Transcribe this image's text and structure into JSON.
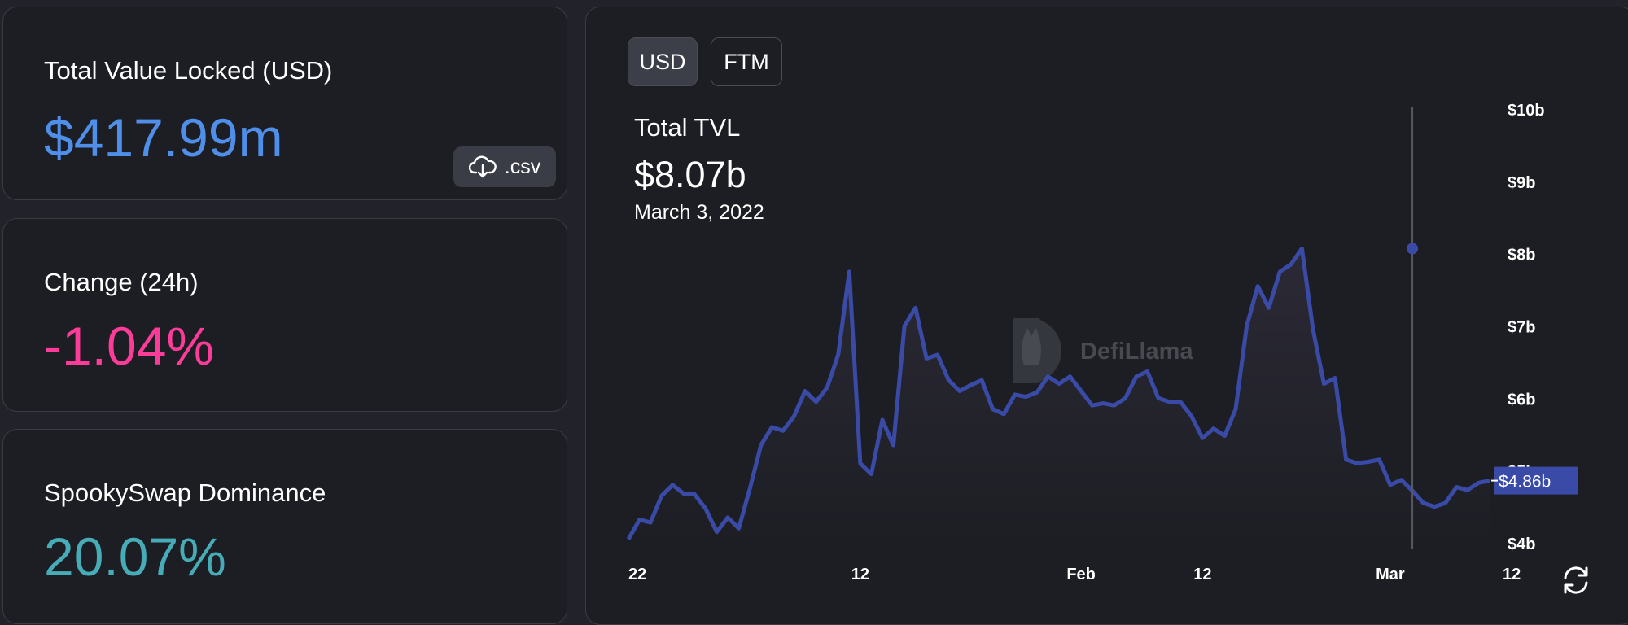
{
  "stats": {
    "tvl": {
      "label": "Total Value Locked (USD)",
      "value": "$417.99m",
      "color": "#4f8fea"
    },
    "change": {
      "label": "Change (24h)",
      "value": "-1.04%",
      "color": "#fd3c99"
    },
    "dominance": {
      "label": "SpookySwap Dominance",
      "value": "20.07%",
      "color": "#46acb7"
    }
  },
  "csv_button": {
    "label": ".csv",
    "icon": "cloud-download-icon"
  },
  "toggles": {
    "usd": "USD",
    "ftm": "FTM",
    "selected": "USD"
  },
  "tooltip": {
    "title": "Total TVL",
    "value": "$8.07b",
    "date": "March 3, 2022"
  },
  "watermark": {
    "text": "DefiLlama"
  },
  "refresh_icon": "refresh-icon",
  "chart_data": {
    "type": "area",
    "title": "",
    "xlabel": "",
    "ylabel": "",
    "ylim": [
      4,
      10
    ],
    "y_ticks": [
      "$4b",
      "$5b",
      "$6b",
      "$7b",
      "$8b",
      "$9b",
      "$10b"
    ],
    "x_ticks": [
      "22",
      "12",
      "Feb",
      "12",
      "Mar",
      "12"
    ],
    "line_color": "#3a4ba7",
    "x_start": "2021-12-22",
    "series": [
      {
        "values": [
          4.05,
          4.32,
          4.28,
          4.65,
          4.8,
          4.68,
          4.67,
          4.47,
          4.15,
          4.35,
          4.2,
          4.75,
          5.35,
          5.6,
          5.55,
          5.75,
          6.1,
          5.95,
          6.15,
          6.6,
          7.75,
          5.1,
          4.95,
          5.7,
          5.35,
          7.0,
          7.25,
          6.55,
          6.6,
          6.25,
          6.1,
          6.18,
          6.25,
          5.85,
          5.78,
          6.05,
          6.02,
          6.08,
          6.3,
          6.2,
          6.3,
          6.1,
          5.9,
          5.93,
          5.9,
          6.0,
          6.3,
          6.37,
          6.0,
          5.95,
          5.95,
          5.75,
          5.45,
          5.58,
          5.48,
          5.85,
          7.0,
          7.55,
          7.25,
          7.75,
          7.85,
          8.07,
          6.95,
          6.2,
          6.28,
          5.15,
          5.1,
          5.12,
          5.15,
          4.8,
          4.87,
          4.72,
          4.55,
          4.5,
          4.55,
          4.77,
          4.73,
          4.83,
          4.86
        ]
      }
    ],
    "highlight": {
      "date": "2022-03-03",
      "value": 8.07
    },
    "current_value_label": "$4.86b"
  }
}
